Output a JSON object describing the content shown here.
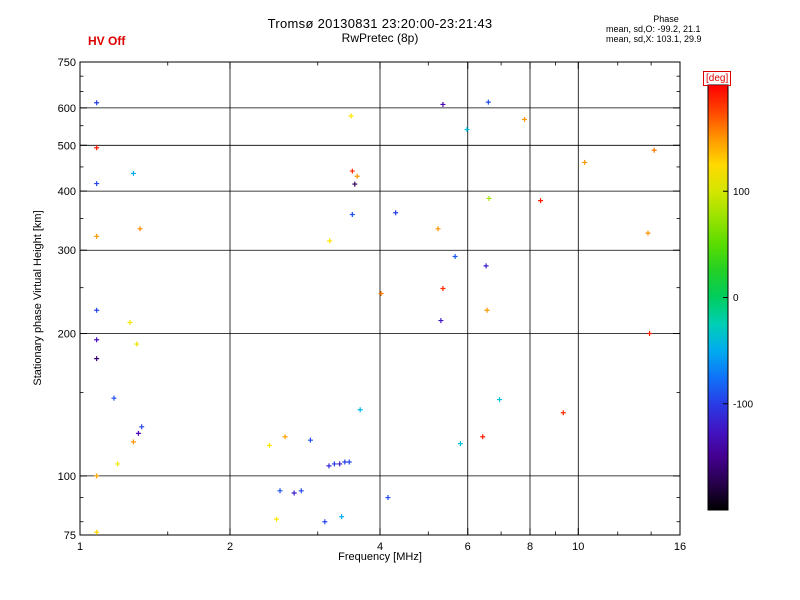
{
  "header": {
    "hv_status": "HV Off",
    "title": "Tromsø 20130831 23:20:00-23:21:43",
    "subtitle": "RwPretec (8p)",
    "phase_label": "Phase",
    "stats_o": "mean, sd,O: -99.2, 21.1",
    "stats_x": "mean, sd,X: 103.1, 29.9"
  },
  "colorbar": {
    "unit_label": "[deg]",
    "ticks": [
      100,
      0,
      -100
    ],
    "max": 200,
    "min": -200,
    "accent_color": "#dd0000"
  },
  "chart_data": {
    "type": "scatter",
    "title": "Tromsø 20130831 23:20:00-23:21:43",
    "subtitle": "RwPretec (8p)",
    "xlabel": "Frequency [MHz]",
    "ylabel": "Stationary phase Virtual Height [km]",
    "xscale": "log",
    "yscale": "log",
    "xlim": [
      1,
      16
    ],
    "ylim": [
      75,
      750
    ],
    "xticks": [
      1,
      2,
      4,
      6,
      8,
      10,
      16
    ],
    "xgrid": [
      2,
      4,
      6,
      8,
      10
    ],
    "xminor": [
      1.5,
      3,
      5,
      7,
      9,
      12,
      14
    ],
    "yticks": [
      75,
      100,
      200,
      300,
      400,
      500,
      600,
      750
    ],
    "ygrid": [
      100,
      200,
      300,
      400,
      500,
      600
    ],
    "yminor": [
      80,
      90,
      150,
      250,
      350,
      450,
      550,
      650,
      700
    ],
    "color_unit": "deg",
    "color_range": [
      -200,
      200
    ],
    "legend": "colorbar-right",
    "points": [
      [
        1.08,
        615,
        -100
      ],
      [
        5.35,
        610,
        -135
      ],
      [
        6.6,
        617,
        -90
      ],
      [
        3.5,
        577,
        120
      ],
      [
        7.8,
        567,
        150
      ],
      [
        1.08,
        494,
        190
      ],
      [
        5.98,
        540,
        -40
      ],
      [
        10.3,
        460,
        150
      ],
      [
        14.2,
        488,
        160
      ],
      [
        1.08,
        415,
        -95
      ],
      [
        1.28,
        436,
        -50
      ],
      [
        3.52,
        441,
        185
      ],
      [
        3.6,
        430,
        150
      ],
      [
        3.56,
        414,
        -170
      ],
      [
        6.62,
        386,
        80
      ],
      [
        8.4,
        382,
        190
      ],
      [
        1.08,
        321,
        150
      ],
      [
        1.32,
        333,
        155
      ],
      [
        3.17,
        314,
        120
      ],
      [
        3.52,
        357,
        -90
      ],
      [
        4.3,
        360,
        -100
      ],
      [
        5.23,
        333,
        150
      ],
      [
        13.8,
        326,
        150
      ],
      [
        5.66,
        291,
        -85
      ],
      [
        6.53,
        278,
        -120
      ],
      [
        4.02,
        243,
        160
      ],
      [
        5.35,
        249,
        185
      ],
      [
        1.08,
        224,
        -95
      ],
      [
        1.26,
        211,
        115
      ],
      [
        5.3,
        213,
        -125
      ],
      [
        6.56,
        224,
        150
      ],
      [
        1.08,
        194,
        -130
      ],
      [
        1.3,
        190,
        110
      ],
      [
        13.9,
        200,
        190
      ],
      [
        1.08,
        177,
        -160
      ],
      [
        1.17,
        146,
        -90
      ],
      [
        3.65,
        138,
        -45
      ],
      [
        6.95,
        145,
        -40
      ],
      [
        9.33,
        136,
        185
      ],
      [
        1.33,
        127,
        -95
      ],
      [
        1.31,
        123,
        -135
      ],
      [
        6.43,
        121,
        190
      ],
      [
        5.8,
        117,
        -40
      ],
      [
        1.28,
        118,
        150
      ],
      [
        2.58,
        121,
        145
      ],
      [
        2.9,
        119,
        -90
      ],
      [
        2.4,
        116,
        120
      ],
      [
        3.16,
        105,
        -110
      ],
      [
        3.24,
        106,
        -100
      ],
      [
        3.32,
        106,
        -120
      ],
      [
        3.4,
        107,
        -100
      ],
      [
        3.47,
        107,
        -95
      ],
      [
        1.19,
        106,
        115
      ],
      [
        1.08,
        100,
        145
      ],
      [
        2.52,
        93,
        -90
      ],
      [
        2.69,
        92,
        -120
      ],
      [
        2.78,
        93,
        -95
      ],
      [
        4.15,
        90,
        -90
      ],
      [
        2.48,
        81,
        120
      ],
      [
        3.1,
        80,
        -95
      ],
      [
        3.35,
        82,
        -50
      ],
      [
        1.08,
        76,
        125
      ]
    ]
  }
}
